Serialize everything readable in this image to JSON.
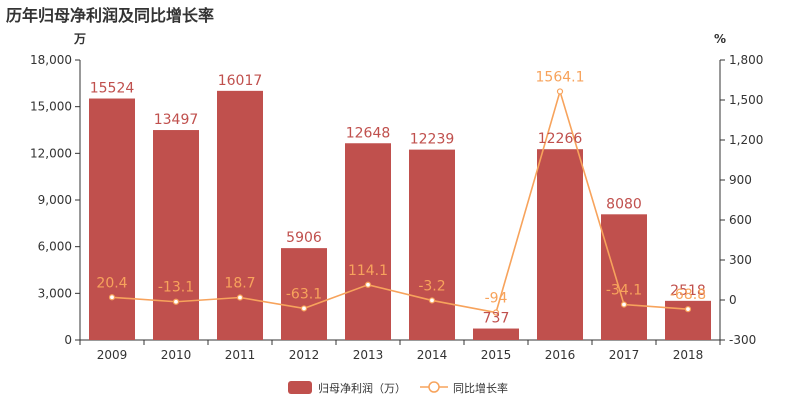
{
  "chart_data": {
    "type": "bar",
    "title": "历年归母净利润及同比增长率",
    "categories": [
      "2009",
      "2010",
      "2011",
      "2012",
      "2013",
      "2014",
      "2015",
      "2016",
      "2017",
      "2018"
    ],
    "left_axis_unit": "万",
    "right_axis_unit": "%",
    "ylim_left": [
      0,
      18000
    ],
    "yticks_left": [
      "0",
      "3,000",
      "6,000",
      "9,000",
      "12,000",
      "15,000",
      "18,000"
    ],
    "ylim_right": [
      -300,
      1800
    ],
    "yticks_right": [
      "-300",
      "0",
      "300",
      "600",
      "900",
      "1,200",
      "1,500",
      "1,800"
    ],
    "series": [
      {
        "name": "归母净利润（万）",
        "type": "bar",
        "axis": "left",
        "color": "#c0504d",
        "values": [
          15524,
          13497,
          16017,
          5906,
          12648,
          12239,
          737,
          12266,
          8080,
          2518
        ],
        "labels": [
          "15524",
          "13497",
          "16017",
          "5906",
          "12648",
          "12239",
          "737",
          "12266",
          "8080",
          "2518"
        ]
      },
      {
        "name": "同比增长率",
        "type": "line",
        "axis": "right",
        "color": "#f7a35c",
        "values": [
          20.4,
          -13.1,
          18.7,
          -63.1,
          114.1,
          -3.2,
          -94,
          1564.1,
          -34.1,
          -68.8
        ],
        "labels": [
          "20.4",
          "-13.1",
          "18.7",
          "-63.1",
          "114.1",
          "-3.2",
          "-94",
          "1564.1",
          "-34.1",
          "-68.8"
        ]
      }
    ],
    "legend_position": "bottom-center",
    "grid": false
  }
}
